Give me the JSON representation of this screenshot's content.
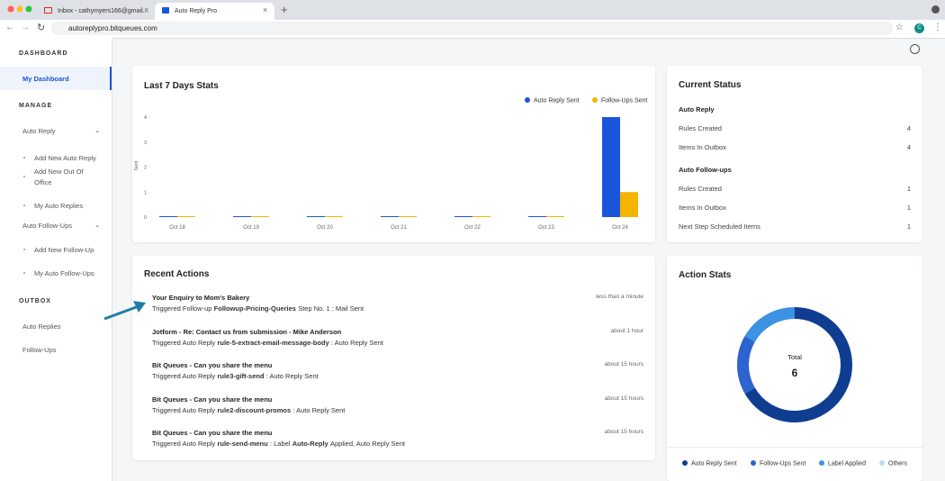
{
  "browser": {
    "tabs": [
      "Inbox - cathymyers166@gmail...",
      "Auto Reply Pro"
    ],
    "url": "autoreplypro.bitqueues.com",
    "profile": "C"
  },
  "sidebar": {
    "dashboard_title": "DASHBOARD",
    "dashboard_link": "My Dashboard",
    "manage_title": "MANAGE",
    "auto_reply": "Auto Reply",
    "auto_reply_items": [
      "Add New Auto Reply",
      "Add New Out Of Office",
      "My Auto Replies"
    ],
    "follow_ups": "Auto Follow-Ups",
    "follow_up_items": [
      "Add New Follow-Up",
      "My Auto Follow-Ups"
    ],
    "outbox_title": "OUTBOX",
    "outbox_items": [
      "Auto Replies",
      "Follow-Ups"
    ]
  },
  "status": {
    "title": "Current Status",
    "groups": [
      {
        "title": "Auto Reply",
        "rows": [
          {
            "label": "Rules Created",
            "value": 4
          },
          {
            "label": "Items In Outbox",
            "value": 4
          }
        ]
      },
      {
        "title": "Auto Follow-ups",
        "rows": [
          {
            "label": "Rules Created",
            "value": 1
          },
          {
            "label": "Items In Outbox",
            "value": 1
          },
          {
            "label": "Next Step Scheduled Items",
            "value": 1
          }
        ]
      }
    ]
  },
  "recent": {
    "title": "Recent Actions",
    "items": [
      {
        "subject": "Your Enquiry to Mom's Bakery",
        "parts": [
          "Triggered Follow-up",
          "Followup-Pricing-Queries",
          "Step No. 1 : Mail Sent"
        ],
        "time": "less than a minute"
      },
      {
        "subject": "Jotform - Re: Contact us from submission - Mike Anderson",
        "parts": [
          "Triggered Auto Reply",
          "rule-5-extract-email-message-body",
          ": Auto Reply Sent"
        ],
        "time": "about 1 hour"
      },
      {
        "subject": "Bit Queues - Can you share the menu",
        "parts": [
          "Triggered Auto Reply",
          "rule3-gift-send",
          ": Auto Reply Sent"
        ],
        "time": "about 15 hours"
      },
      {
        "subject": "Bit Queues - Can you share the menu",
        "parts": [
          "Triggered Auto Reply",
          "rule2-discount-promos",
          ": Auto Reply Sent"
        ],
        "time": "about 15 hours"
      },
      {
        "subject": "Bit Queues - Can you share the menu",
        "parts": [
          "Triggered Auto Reply",
          "rule-send-menu",
          ": Label",
          "Auto-Reply",
          "Applied, Auto Reply Sent"
        ],
        "time": "about 15 hours"
      }
    ]
  },
  "chart_data": [
    {
      "type": "bar",
      "title": "Last 7 Days Stats",
      "y_label": "Sent",
      "categories": [
        "Oct 18",
        "Oct 19",
        "Oct 20",
        "Oct 21",
        "Oct 22",
        "Oct 23",
        "Oct 24"
      ],
      "series": [
        {
          "name": "Auto Reply Sent",
          "color": "#1a56db",
          "values": [
            0,
            0,
            0,
            0,
            0,
            0,
            4
          ]
        },
        {
          "name": "Follow-Ups Sent",
          "color": "#f4b400",
          "values": [
            0,
            0,
            0,
            0,
            0,
            0,
            1
          ]
        }
      ],
      "ylim": [
        0,
        4
      ],
      "yticks": [
        0,
        1,
        2,
        3,
        4
      ],
      "legend": "top-right"
    },
    {
      "type": "doughnut",
      "title": "Action Stats",
      "center_label": "Total",
      "total": 6,
      "categories": [
        "Auto Reply Sent",
        "Follow-Ups Sent",
        "Label Applied",
        "Others"
      ],
      "values": [
        4,
        1,
        1,
        0
      ],
      "colors": [
        "#0f3d91",
        "#2c63cf",
        "#3d92e3",
        "#bcdcf7"
      ],
      "legend": "bottom"
    }
  ]
}
